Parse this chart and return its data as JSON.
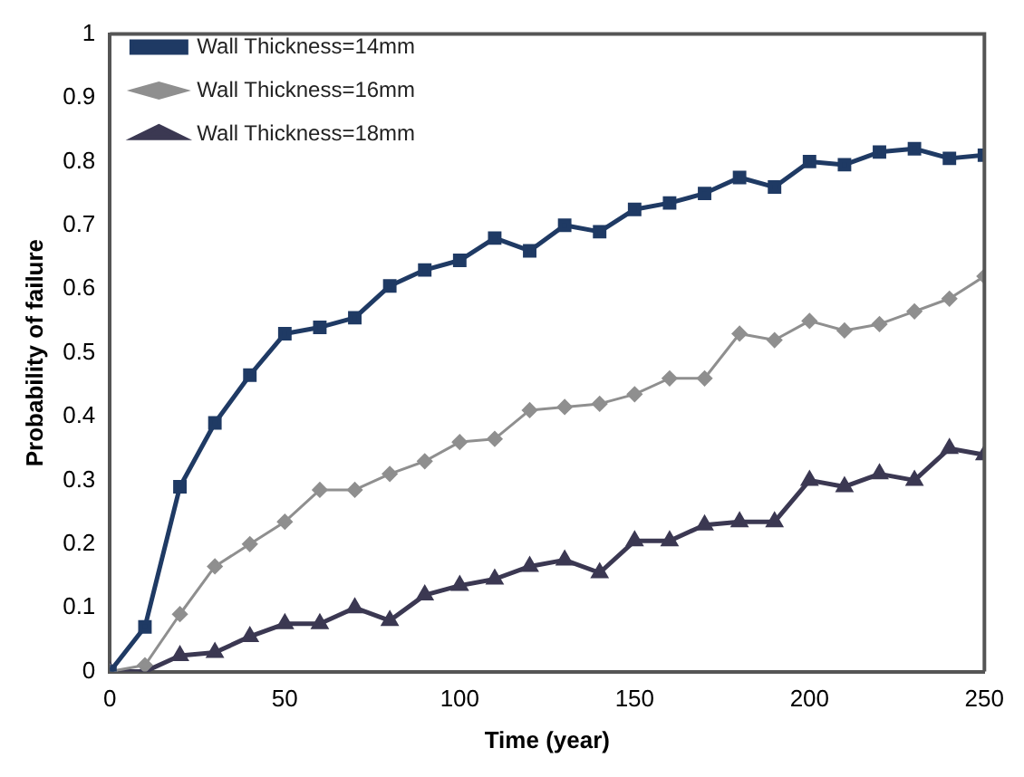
{
  "chart_data": {
    "type": "line",
    "xlabel": "Time (year)",
    "ylabel": "Probability of failure",
    "x": [
      0,
      10,
      20,
      30,
      40,
      50,
      60,
      70,
      80,
      90,
      100,
      110,
      120,
      130,
      140,
      150,
      160,
      170,
      180,
      190,
      200,
      210,
      220,
      230,
      240,
      250
    ],
    "xlim": [
      0,
      250
    ],
    "xticks": [
      0,
      50,
      100,
      150,
      200,
      250
    ],
    "ylim": [
      0,
      1
    ],
    "yticks": [
      0,
      0.1,
      0.2,
      0.3,
      0.4,
      0.5,
      0.6,
      0.7,
      0.8,
      0.9,
      1
    ],
    "grid": false,
    "legend": "top left",
    "line_style": "solid",
    "series": [
      {
        "name": "Wall Thickness=14mm",
        "color": "#1f3a64",
        "marker": "square",
        "values": [
          0,
          0.07,
          0.29,
          0.39,
          0.465,
          0.53,
          0.54,
          0.555,
          0.605,
          0.63,
          0.645,
          0.68,
          0.66,
          0.7,
          0.69,
          0.725,
          0.735,
          0.75,
          0.775,
          0.76,
          0.8,
          0.795,
          0.815,
          0.82,
          0.805,
          0.81
        ]
      },
      {
        "name": "Wall Thickness=16mm",
        "color": "#8f8f8f",
        "marker": "diamond",
        "values": [
          0,
          0.01,
          0.09,
          0.165,
          0.2,
          0.235,
          0.285,
          0.285,
          0.31,
          0.33,
          0.36,
          0.365,
          0.41,
          0.415,
          0.42,
          0.435,
          0.46,
          0.46,
          0.53,
          0.52,
          0.55,
          0.535,
          0.545,
          0.565,
          0.585,
          0.62
        ]
      },
      {
        "name": "Wall Thickness=18mm",
        "color": "#3b3852",
        "marker": "triangle",
        "values": [
          0,
          0,
          0.025,
          0.03,
          0.055,
          0.075,
          0.075,
          0.1,
          0.08,
          0.12,
          0.135,
          0.145,
          0.165,
          0.175,
          0.155,
          0.205,
          0.205,
          0.23,
          0.235,
          0.235,
          0.3,
          0.29,
          0.31,
          0.3,
          0.35,
          0.34
        ]
      }
    ]
  }
}
